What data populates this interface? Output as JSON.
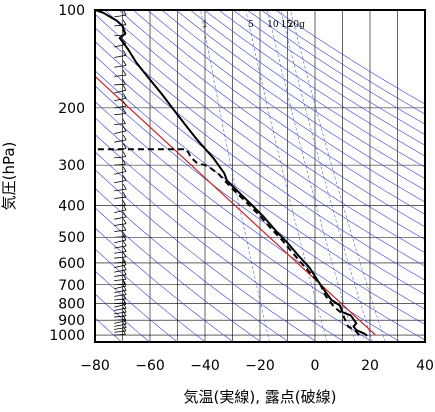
{
  "chart_data": {
    "type": "line",
    "subtype": "emagram",
    "xlabel": "気温(実線), 露点(破線)",
    "ylabel": "気圧(hPa)",
    "x_axis": {
      "range": [
        -80,
        40
      ],
      "ticks": [
        -80,
        -60,
        -40,
        -20,
        0,
        20,
        40
      ],
      "tick_labels": [
        "−80",
        "−60",
        "−40",
        "−20",
        "0",
        "20",
        "40"
      ]
    },
    "y_axis": {
      "scale": "log",
      "range": [
        1050,
        100
      ],
      "ticks": [
        1000,
        900,
        800,
        700,
        600,
        500,
        400,
        300,
        200,
        100
      ],
      "tick_labels": [
        "1000",
        "900",
        "800",
        "700",
        "600",
        "500",
        "400",
        "300",
        "200",
        "100"
      ]
    },
    "grid": true,
    "mixing_ratio_labels": [
      "1",
      "5",
      "10",
      "15",
      "20g"
    ],
    "mixing_ratio_values": [
      1,
      5,
      10,
      15,
      20
    ],
    "reference_line": {
      "name": "",
      "color": "#cc2222",
      "points": [
        {
          "t": -80,
          "p": 160
        },
        {
          "t": 22,
          "p": 1000
        }
      ]
    },
    "series": [
      {
        "name": "",
        "style": "solid",
        "color": "#000000",
        "points": [
          {
            "t": 19,
            "p": 1005
          },
          {
            "t": 18,
            "p": 990
          },
          {
            "t": 15,
            "p": 965
          },
          {
            "t": 14,
            "p": 940
          },
          {
            "t": 15,
            "p": 920
          },
          {
            "t": 13,
            "p": 870
          },
          {
            "t": 10,
            "p": 850
          },
          {
            "t": 9,
            "p": 810
          },
          {
            "t": 6,
            "p": 780
          },
          {
            "t": 4,
            "p": 740
          },
          {
            "t": 1,
            "p": 680
          },
          {
            "t": -2,
            "p": 620
          },
          {
            "t": -6,
            "p": 570
          },
          {
            "t": -10,
            "p": 520
          },
          {
            "t": -14,
            "p": 480
          },
          {
            "t": -19,
            "p": 430
          },
          {
            "t": -24,
            "p": 390
          },
          {
            "t": -29,
            "p": 355
          },
          {
            "t": -32,
            "p": 335
          },
          {
            "t": -33,
            "p": 318
          },
          {
            "t": -37,
            "p": 285
          },
          {
            "t": -43,
            "p": 250
          },
          {
            "t": -50,
            "p": 210
          },
          {
            "t": -56,
            "p": 180
          },
          {
            "t": -61,
            "p": 160
          },
          {
            "t": -65,
            "p": 145
          },
          {
            "t": -68,
            "p": 132
          },
          {
            "t": -71,
            "p": 122
          },
          {
            "t": -69,
            "p": 118
          },
          {
            "t": -70,
            "p": 112
          },
          {
            "t": -72,
            "p": 108
          },
          {
            "t": -77,
            "p": 102
          },
          {
            "t": -80,
            "p": 100
          }
        ]
      },
      {
        "name": "",
        "style": "dashed",
        "color": "#000000",
        "points": [
          {
            "t": 16,
            "p": 1000
          },
          {
            "t": 15,
            "p": 975
          },
          {
            "t": 12,
            "p": 940
          },
          {
            "t": 11,
            "p": 900
          },
          {
            "t": 10,
            "p": 860
          },
          {
            "t": 7,
            "p": 820
          },
          {
            "t": 4,
            "p": 760
          },
          {
            "t": 2,
            "p": 700
          },
          {
            "t": -2,
            "p": 640
          },
          {
            "t": -5,
            "p": 600
          },
          {
            "t": -8,
            "p": 560
          },
          {
            "t": -12,
            "p": 510
          },
          {
            "t": -16,
            "p": 470
          },
          {
            "t": -20,
            "p": 430
          },
          {
            "t": -25,
            "p": 390
          },
          {
            "t": -30,
            "p": 355
          },
          {
            "t": -35,
            "p": 320
          },
          {
            "t": -39,
            "p": 302
          },
          {
            "t": -43,
            "p": 295
          },
          {
            "t": -45,
            "p": 285
          },
          {
            "t": -46,
            "p": 275
          },
          {
            "t": -47,
            "p": 268
          },
          {
            "t": -82,
            "p": 268
          }
        ]
      }
    ],
    "wind_barbs": {
      "t_position": -73,
      "pressures": [
        1000,
        980,
        960,
        940,
        920,
        900,
        880,
        860,
        840,
        820,
        800,
        780,
        760,
        740,
        720,
        700,
        680,
        660,
        640,
        620,
        600,
        580,
        560,
        540,
        520,
        500,
        480,
        460,
        440,
        420,
        400,
        380,
        360,
        340,
        320,
        300,
        285,
        270,
        255,
        240,
        225,
        210,
        200,
        190,
        180,
        170,
        160,
        150,
        140,
        130,
        120,
        112,
        105
      ]
    },
    "colors": {
      "isotherm": "#000000",
      "dry_adiabat": "#3344cc",
      "mixing_ratio": "#3344cc",
      "reference": "#cc2222"
    }
  }
}
